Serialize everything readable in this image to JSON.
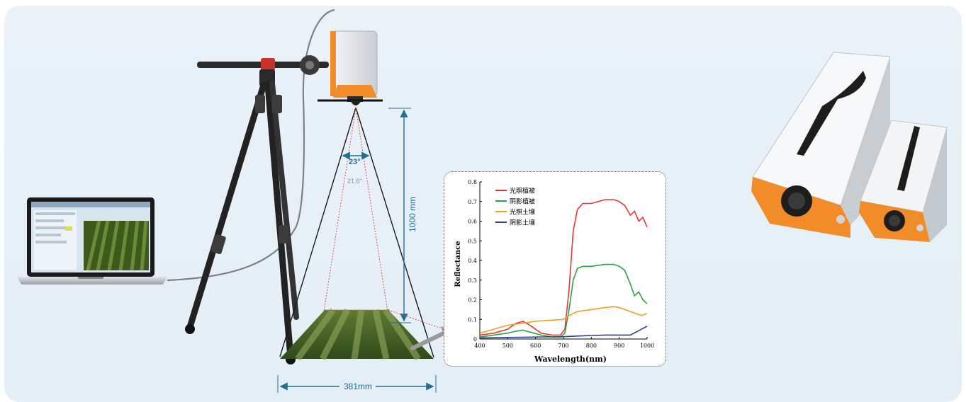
{
  "dimensions": {
    "height_label": "1000 mm",
    "width_label": "381mm",
    "angle_large": "23°",
    "angle_small": "21.6°"
  },
  "laptop": {
    "screen_bg": "#d8e4ee",
    "crop_image_colors": [
      "#3d5a1c",
      "#6e8a3a",
      "#8c7a5c"
    ]
  },
  "devices": {
    "body_color": "#e9ecef",
    "accent_color": "#f28c28",
    "handle_color": "#1d1d1d"
  },
  "chart_data": {
    "type": "line",
    "xlabel": "Wavelength(nm)",
    "ylabel": "Reflectance",
    "xlim": [
      400,
      1000
    ],
    "ylim": [
      0,
      0.8
    ],
    "xticks": [
      400,
      500,
      600,
      700,
      800,
      900,
      1000
    ],
    "yticks": [
      0,
      0.1,
      0.2,
      0.3,
      0.4,
      0.5,
      0.6,
      0.7,
      0.8
    ],
    "legend_position": "top-left",
    "series": [
      {
        "name": "光照植被",
        "color": "#e53935",
        "points": [
          [
            400,
            0.02
          ],
          [
            450,
            0.03
          ],
          [
            500,
            0.05
          ],
          [
            530,
            0.08
          ],
          [
            555,
            0.09
          ],
          [
            580,
            0.07
          ],
          [
            620,
            0.03
          ],
          [
            660,
            0.02
          ],
          [
            690,
            0.02
          ],
          [
            705,
            0.05
          ],
          [
            720,
            0.25
          ],
          [
            735,
            0.55
          ],
          [
            750,
            0.66
          ],
          [
            770,
            0.69
          ],
          [
            800,
            0.69
          ],
          [
            850,
            0.71
          ],
          [
            880,
            0.71
          ],
          [
            900,
            0.7
          ],
          [
            920,
            0.68
          ],
          [
            940,
            0.63
          ],
          [
            955,
            0.65
          ],
          [
            970,
            0.6
          ],
          [
            985,
            0.62
          ],
          [
            1000,
            0.57
          ]
        ]
      },
      {
        "name": "阴影植被",
        "color": "#2ea043",
        "points": [
          [
            400,
            0.01
          ],
          [
            450,
            0.02
          ],
          [
            500,
            0.03
          ],
          [
            530,
            0.04
          ],
          [
            555,
            0.045
          ],
          [
            580,
            0.035
          ],
          [
            620,
            0.02
          ],
          [
            660,
            0.01
          ],
          [
            690,
            0.01
          ],
          [
            705,
            0.03
          ],
          [
            720,
            0.15
          ],
          [
            735,
            0.3
          ],
          [
            750,
            0.36
          ],
          [
            770,
            0.37
          ],
          [
            800,
            0.37
          ],
          [
            850,
            0.38
          ],
          [
            880,
            0.38
          ],
          [
            900,
            0.37
          ],
          [
            920,
            0.35
          ],
          [
            940,
            0.28
          ],
          [
            955,
            0.22
          ],
          [
            970,
            0.24
          ],
          [
            985,
            0.2
          ],
          [
            1000,
            0.18
          ]
        ]
      },
      {
        "name": "光照土壤",
        "color": "#f0a020",
        "points": [
          [
            400,
            0.03
          ],
          [
            450,
            0.05
          ],
          [
            500,
            0.07
          ],
          [
            550,
            0.08
          ],
          [
            600,
            0.09
          ],
          [
            650,
            0.095
          ],
          [
            700,
            0.1
          ],
          [
            720,
            0.12
          ],
          [
            750,
            0.14
          ],
          [
            800,
            0.15
          ],
          [
            850,
            0.16
          ],
          [
            880,
            0.165
          ],
          [
            900,
            0.16
          ],
          [
            920,
            0.15
          ],
          [
            940,
            0.14
          ],
          [
            960,
            0.13
          ],
          [
            980,
            0.12
          ],
          [
            1000,
            0.13
          ]
        ]
      },
      {
        "name": "阴影土壤",
        "color": "#2a3f9f",
        "points": [
          [
            400,
            0.005
          ],
          [
            500,
            0.008
          ],
          [
            600,
            0.01
          ],
          [
            700,
            0.012
          ],
          [
            750,
            0.015
          ],
          [
            800,
            0.018
          ],
          [
            850,
            0.02
          ],
          [
            900,
            0.02
          ],
          [
            940,
            0.02
          ],
          [
            960,
            0.035
          ],
          [
            980,
            0.05
          ],
          [
            1000,
            0.065
          ]
        ]
      }
    ]
  }
}
